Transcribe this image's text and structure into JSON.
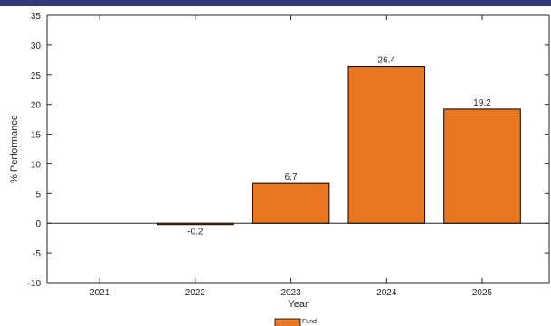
{
  "colors": {
    "header_bar": "#2f3a77",
    "bar_fill": "#e87722",
    "bar_stroke": "#000000",
    "axis": "#262626"
  },
  "chart_data": {
    "type": "bar",
    "categories": [
      "2021",
      "2022",
      "2023",
      "2024",
      "2025"
    ],
    "series": [
      {
        "name": "Fund",
        "values": [
          null,
          -0.2,
          6.7,
          26.4,
          19.2
        ]
      }
    ],
    "data_labels": [
      "",
      "-0.2",
      "6.7",
      "26.4",
      "19.2"
    ],
    "xlabel": "Year",
    "ylabel": "% Performance",
    "ylim": [
      -10,
      35
    ],
    "yticks": [
      -10,
      -5,
      0,
      5,
      10,
      15,
      20,
      25,
      30,
      35
    ],
    "xlim": [
      2020.45,
      2025.7
    ],
    "grid": false,
    "legend_position": "bottom-center"
  }
}
